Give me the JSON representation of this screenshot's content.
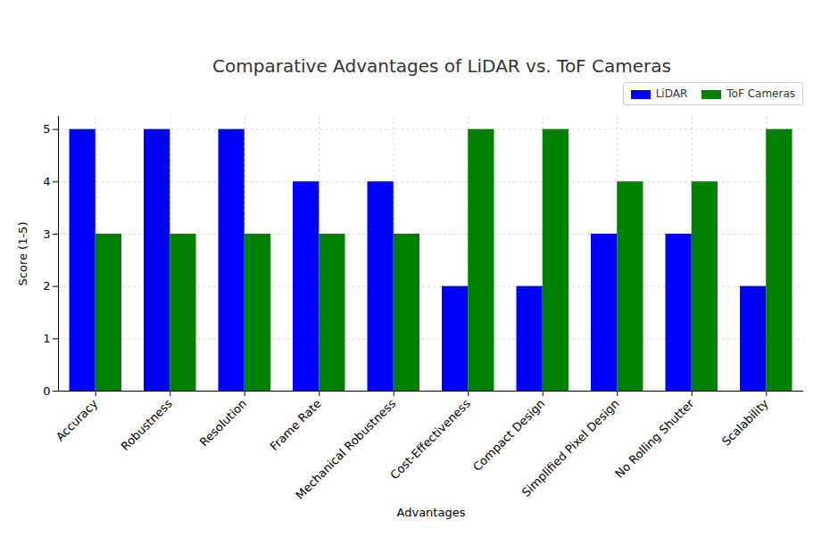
{
  "chart_data": {
    "type": "bar",
    "title": "Comparative Advantages of LiDAR vs. ToF Cameras",
    "x_label": "Advantages",
    "y_label": "Score (1-5)",
    "categories": [
      "Accuracy",
      "Robustness",
      "Resolution",
      "Frame Rate",
      "Mechanical Robustness",
      "Cost-Effectiveness",
      "Compact Design",
      "Simplified Pixel Design",
      "No Rolling Shutter",
      "Scalability"
    ],
    "series": [
      {
        "name": "LiDAR",
        "color": "#0000ff",
        "values": [
          5,
          5,
          5,
          4,
          4,
          2,
          2,
          3,
          3,
          2
        ]
      },
      {
        "name": "ToF Cameras",
        "color": "#008000",
        "values": [
          3,
          3,
          3,
          3,
          3,
          5,
          5,
          4,
          4,
          5
        ]
      }
    ],
    "ylim": [
      0,
      5.25
    ],
    "yticks": [
      0,
      1,
      2,
      3,
      4,
      5
    ],
    "grid": true,
    "legend": "upper right"
  }
}
